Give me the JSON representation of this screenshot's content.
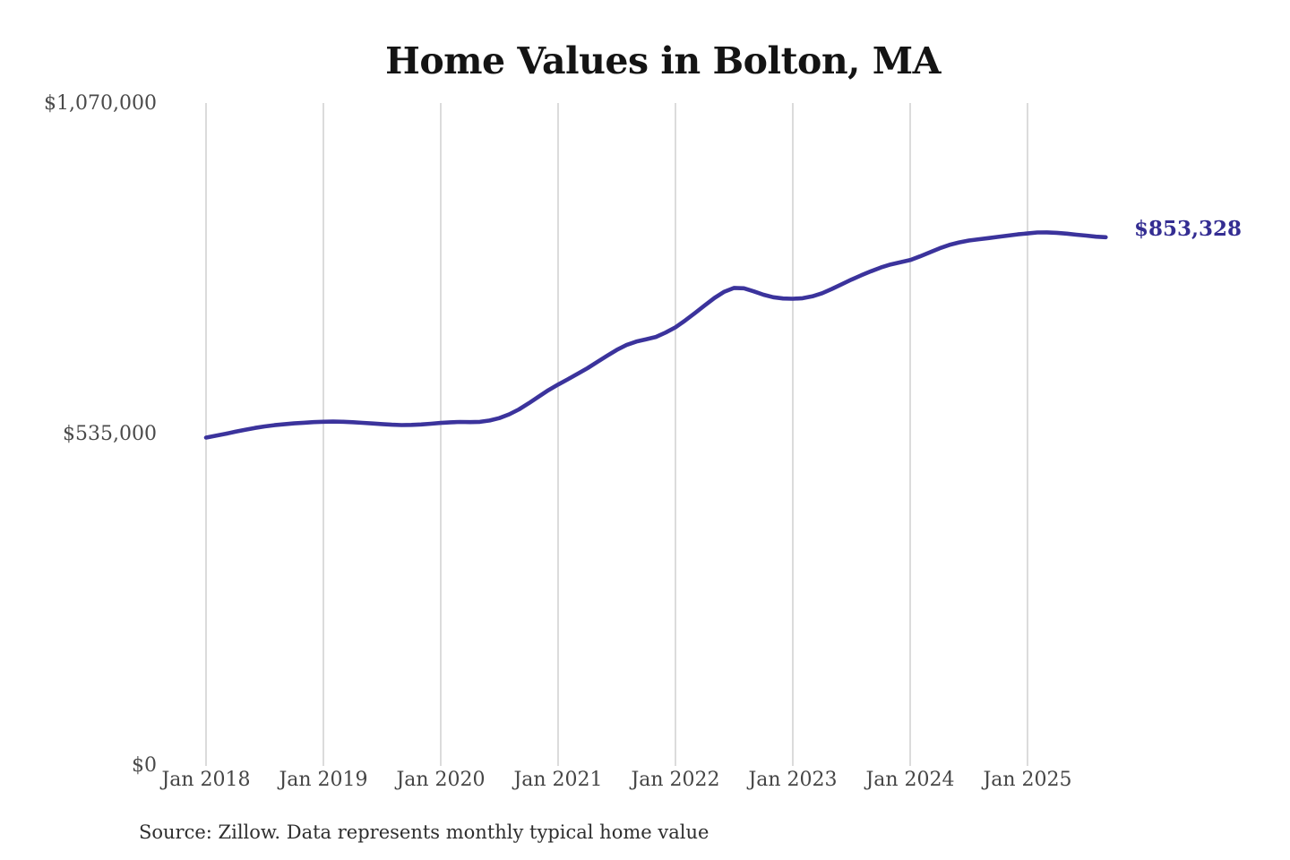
{
  "title": "Home Values in Bolton, MA",
  "end_label": "$853,328",
  "source_note": "Source: Zillow. Data represents monthly typical home value",
  "colors": {
    "line": "#3b339c",
    "end_label": "#342d92",
    "gridline": "#cccccc",
    "title_text": "#141414",
    "axis_text": "#4a4a4a"
  },
  "chart_data": {
    "type": "line",
    "title": "Home Values in Bolton, MA",
    "xlabel": "",
    "ylabel": "",
    "ylim": [
      0,
      1070000
    ],
    "y_tick_values": [
      1070000,
      535000,
      0
    ],
    "y_tick_labels": [
      "$1,070,000",
      "$535,000",
      "$0"
    ],
    "x_tick_labels": [
      "Jan 2018",
      "Jan 2019",
      "Jan 2020",
      "Jan 2021",
      "Jan 2022",
      "Jan 2023",
      "Jan 2024",
      "Jan 2025"
    ],
    "grid": "vertical-only",
    "legend": "none",
    "points_per_tick_interval": 12,
    "end_value": 853328,
    "series": [
      {
        "name": "Monthly typical home value",
        "values": [
          530000,
          533000,
          536000,
          539500,
          542500,
          545500,
          548000,
          550000,
          551500,
          553000,
          554000,
          555000,
          555500,
          555800,
          555500,
          554800,
          553800,
          552800,
          551800,
          550800,
          550200,
          550400,
          551200,
          552400,
          553600,
          554600,
          555200,
          555000,
          555400,
          557500,
          561500,
          567500,
          575500,
          585500,
          596000,
          606500,
          615500,
          624000,
          633000,
          642000,
          652000,
          662000,
          671500,
          679500,
          685000,
          688500,
          692500,
          699500,
          708000,
          719000,
          731000,
          743500,
          755500,
          765500,
          771500,
          771000,
          766000,
          760500,
          756500,
          754500,
          754000,
          755000,
          758000,
          763000,
          770000,
          777500,
          785000,
          792000,
          798500,
          804500,
          809500,
          813000,
          816500,
          822500,
          829000,
          835500,
          841000,
          845000,
          848000,
          850000,
          852000,
          854000,
          856000,
          858000,
          859500,
          861000,
          861200,
          860500,
          859200,
          857500,
          856000,
          854200,
          853328
        ]
      }
    ]
  }
}
